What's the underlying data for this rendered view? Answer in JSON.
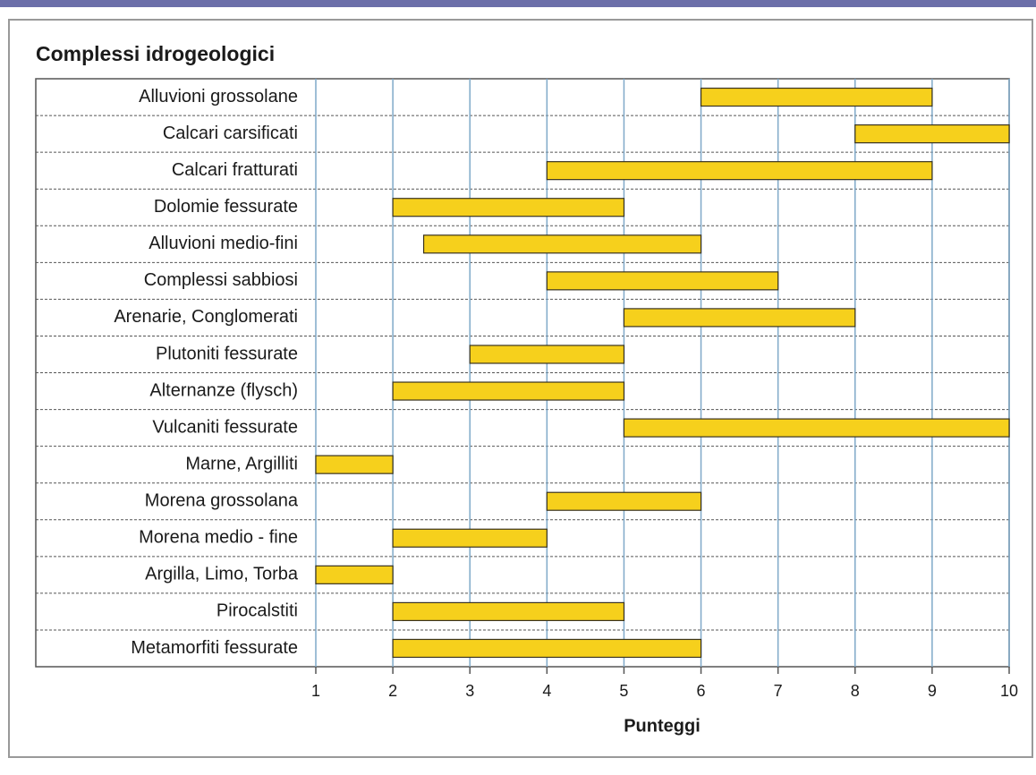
{
  "chart_data": {
    "type": "range_bar",
    "title": "Complessi idrogeologici",
    "xlabel": "Punteggi",
    "categories": [
      "Alluvioni grossolane",
      "Calcari carsificati",
      "Calcari fratturati",
      "Dolomie fessurate",
      "Alluvioni medio-fini",
      "Complessi sabbiosi",
      "Arenarie, Conglomerati",
      "Plutoniti fessurate",
      "Alternanze (flysch)",
      "Vulcaniti fessurate",
      "Marne, Argilliti",
      "Morena grossolana",
      "Morena medio - fine",
      "Argilla, Limo, Torba",
      "Pirocalstiti",
      "Metamorfiti fessurate"
    ],
    "start": [
      6,
      8,
      4,
      2,
      2.4,
      4,
      5,
      3,
      2,
      5,
      1,
      4,
      2,
      1,
      2,
      2
    ],
    "end": [
      9,
      10,
      9,
      5,
      6,
      7,
      8,
      5,
      5,
      10,
      2,
      6,
      4,
      2,
      5,
      6
    ],
    "color": "#f6d01c",
    "xlim": [
      1,
      10
    ],
    "xticks": [
      1,
      2,
      3,
      4,
      5,
      6,
      7,
      8,
      9,
      10
    ],
    "grid": true
  }
}
